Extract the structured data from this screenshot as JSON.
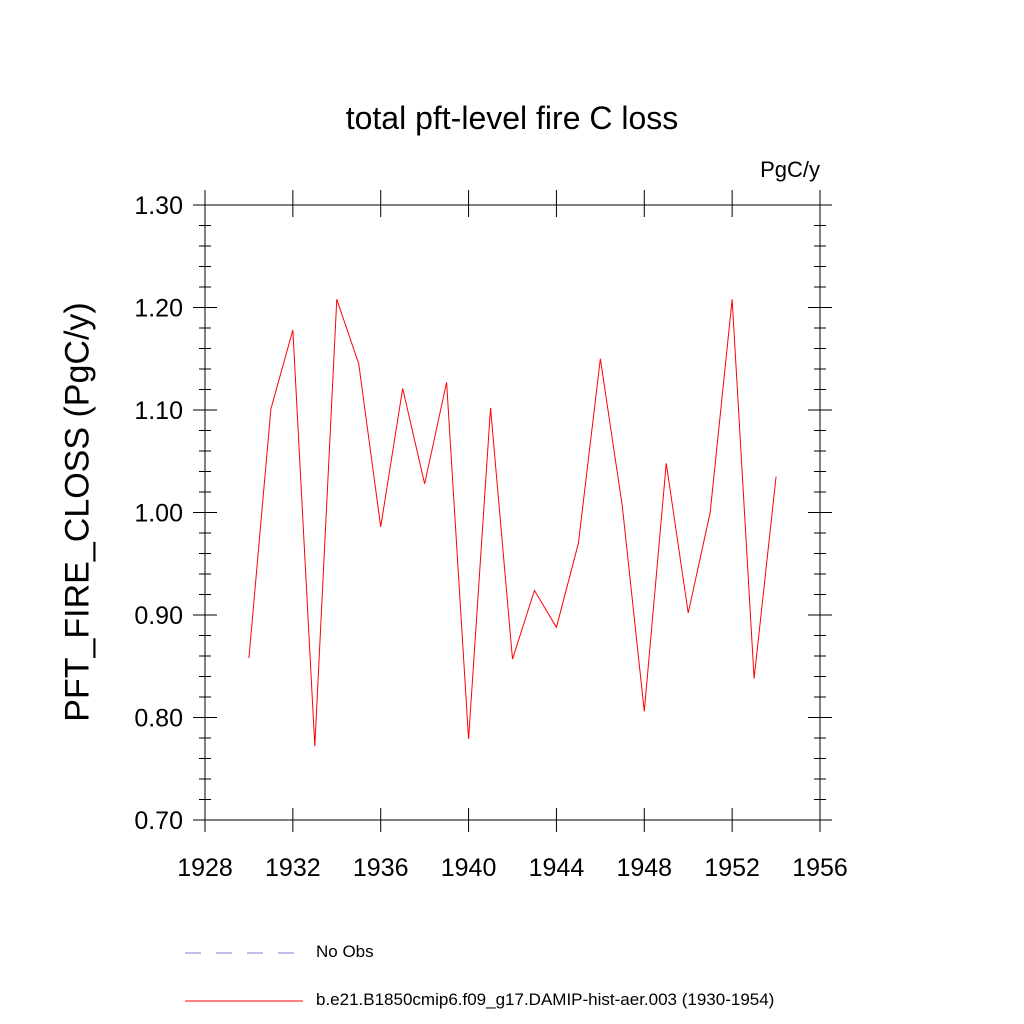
{
  "chart_data": {
    "type": "line",
    "title": "total pft-level fire C loss",
    "units_label": "PgC/y",
    "ylabel": "PFT_FIRE_CLOSS  (PgC/y)",
    "xlabel": "",
    "xlim": [
      1928,
      1956
    ],
    "ylim": [
      0.7,
      1.3
    ],
    "x_ticks": [
      1928,
      1932,
      1936,
      1940,
      1944,
      1948,
      1952,
      1956
    ],
    "x_tick_labels": [
      "1928",
      "1932",
      "1936",
      "1940",
      "1944",
      "1948",
      "1952",
      "1956"
    ],
    "y_ticks": [
      0.7,
      0.8,
      0.9,
      1.0,
      1.1,
      1.2,
      1.3
    ],
    "y_tick_labels": [
      "0.70",
      "0.80",
      "0.90",
      "1.00",
      "1.10",
      "1.20",
      "1.30"
    ],
    "grid": false,
    "legend_position": "bottom",
    "x": [
      1930,
      1931,
      1932,
      1933,
      1934,
      1935,
      1936,
      1937,
      1938,
      1939,
      1940,
      1941,
      1942,
      1943,
      1944,
      1945,
      1946,
      1947,
      1948,
      1949,
      1950,
      1951,
      1952,
      1953,
      1954
    ],
    "series": [
      {
        "name": "b.e21.B1850cmip6.f09_g17.DAMIP-hist-aer.003 (1930-1954)",
        "color": "#ff0000",
        "values": [
          0.858,
          1.101,
          1.178,
          0.772,
          1.208,
          1.145,
          0.986,
          1.121,
          1.028,
          1.127,
          0.779,
          1.102,
          0.857,
          0.924,
          0.888,
          0.97,
          1.15,
          1.006,
          0.806,
          1.048,
          0.902,
          1.0,
          1.208,
          0.838,
          1.035
        ]
      }
    ],
    "legend": [
      {
        "label": "No Obs",
        "style": "dashed",
        "color": "#7f7fcc"
      },
      {
        "label": "b.e21.B1850cmip6.f09_g17.DAMIP-hist-aer.003 (1930-1954)",
        "style": "solid",
        "color": "#ff0000"
      }
    ]
  }
}
